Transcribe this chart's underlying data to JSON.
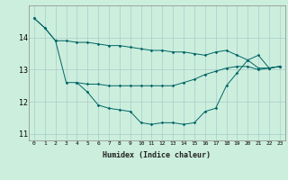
{
  "xlabel": "Humidex (Indice chaleur)",
  "x_values": [
    0,
    1,
    2,
    3,
    4,
    5,
    6,
    7,
    8,
    9,
    10,
    11,
    12,
    13,
    14,
    15,
    16,
    17,
    18,
    19,
    20,
    21,
    22,
    23
  ],
  "line1": [
    14.6,
    14.3,
    13.9,
    13.9,
    13.85,
    13.85,
    13.8,
    13.75,
    13.75,
    13.7,
    13.65,
    13.6,
    13.6,
    13.55,
    13.55,
    13.5,
    13.45,
    13.55,
    13.6,
    13.45,
    13.3,
    13.05,
    13.05,
    13.1
  ],
  "line2": [
    14.6,
    14.3,
    13.9,
    12.6,
    12.6,
    12.3,
    11.9,
    11.8,
    11.75,
    11.7,
    11.35,
    11.3,
    11.35,
    11.35,
    11.3,
    11.35,
    11.7,
    11.8,
    12.5,
    12.9,
    13.3,
    13.45,
    13.05,
    13.1
  ],
  "line3": [
    null,
    null,
    null,
    null,
    12.6,
    12.55,
    12.55,
    12.5,
    12.5,
    12.5,
    12.5,
    12.5,
    12.5,
    12.5,
    12.6,
    12.7,
    12.85,
    12.95,
    13.05,
    13.1,
    13.1,
    13.0,
    13.05,
    13.1
  ],
  "line_color": "#006666",
  "bg_color": "#cceedd",
  "grid_color": "#aacccc",
  "ylim": [
    10.8,
    15.0
  ],
  "yticks": [
    11,
    12,
    13,
    14
  ],
  "xlim": [
    -0.5,
    23.5
  ]
}
